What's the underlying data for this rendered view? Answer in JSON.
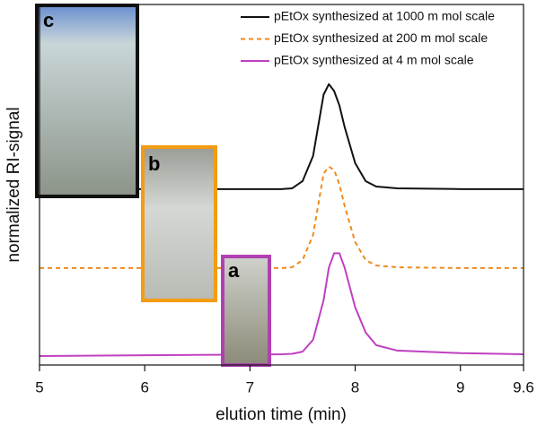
{
  "chart_data": {
    "type": "line",
    "xlabel": "elution time (min)",
    "ylabel": "normalized RI-signal",
    "x": [
      5,
      6,
      7,
      7.3,
      7.4,
      7.5,
      7.6,
      7.7,
      7.75,
      7.8,
      7.85,
      7.9,
      8,
      8.1,
      8.2,
      8.4,
      9,
      9.6
    ],
    "series": [
      {
        "name": "pEtOx synthesized at 1000 m mol scale",
        "color": "#111111",
        "dash": "solid",
        "values": [
          0.488,
          0.488,
          0.488,
          0.488,
          0.49,
          0.51,
          0.58,
          0.75,
          0.779,
          0.76,
          0.72,
          0.66,
          0.56,
          0.51,
          0.495,
          0.49,
          0.488,
          0.488
        ]
      },
      {
        "name": "pEtOx synthesized at 200 m mol scale",
        "color": "#f08a1c",
        "dash": "dashed",
        "values": [
          0.269,
          0.269,
          0.269,
          0.269,
          0.271,
          0.291,
          0.361,
          0.531,
          0.55,
          0.541,
          0.501,
          0.441,
          0.341,
          0.291,
          0.276,
          0.271,
          0.269,
          0.269
        ]
      },
      {
        "name": "pEtOx synthesized at 4 m mol scale",
        "color": "#c040c0",
        "dash": "solid",
        "values": [
          0.025,
          0.027,
          0.029,
          0.03,
          0.031,
          0.037,
          0.07,
          0.18,
          0.27,
          0.31,
          0.31,
          0.27,
          0.16,
          0.09,
          0.055,
          0.04,
          0.033,
          0.03
        ]
      }
    ],
    "xlim": [
      5,
      9.6
    ],
    "xticks": [
      5,
      6,
      7,
      8,
      9,
      9.6
    ],
    "ylim": [
      0,
      1
    ],
    "legend": "upper-right",
    "annotations": [
      "a",
      "b",
      "c"
    ]
  }
}
